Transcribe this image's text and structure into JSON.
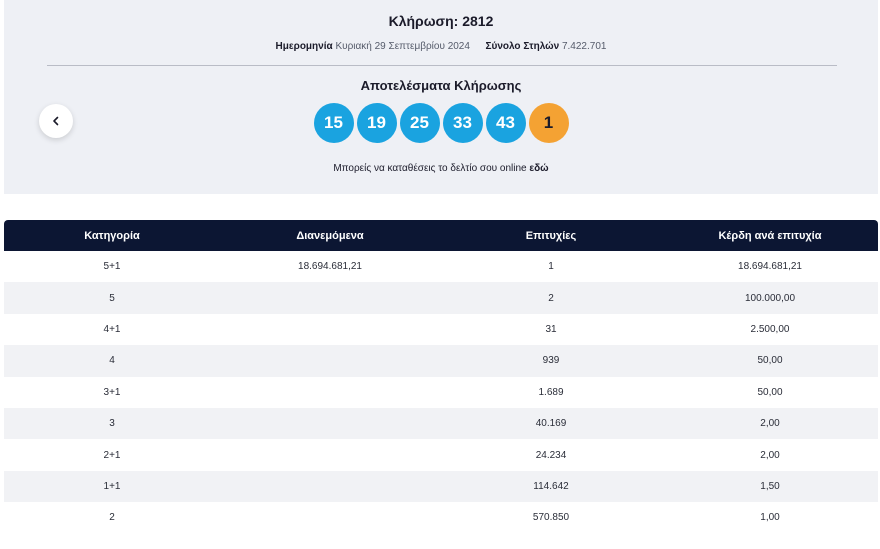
{
  "draw": {
    "title": "Κλήρωση: 2812",
    "date_label": "Ημερομηνία",
    "date_value": "Κυριακή 29 Σεπτεμβρίου 2024",
    "columns_label": "Σύνολο Στηλών",
    "columns_value": "7.422.701"
  },
  "results": {
    "title": "Αποτελέσματα Κλήρωσης",
    "numbers": [
      "15",
      "19",
      "25",
      "33",
      "43"
    ],
    "joker": "1",
    "colors": {
      "main_ball": "#1aa3e0",
      "joker_ball": "#f4a233"
    }
  },
  "online": {
    "text": "Μπορείς να καταθέσεις το δελτίο σου online",
    "link": "εδώ"
  },
  "nav": {
    "back_icon": "chevron-left-icon"
  },
  "table": {
    "headers": [
      "Κατηγορία",
      "Διανεμόμενα",
      "Επιτυχίες",
      "Κέρδη ανά επιτυχία"
    ],
    "rows": [
      [
        "5+1",
        "18.694.681,21",
        "1",
        "18.694.681,21"
      ],
      [
        "5",
        "",
        "2",
        "100.000,00"
      ],
      [
        "4+1",
        "",
        "31",
        "2.500,00"
      ],
      [
        "4",
        "",
        "939",
        "50,00"
      ],
      [
        "3+1",
        "",
        "1.689",
        "50,00"
      ],
      [
        "3",
        "",
        "40.169",
        "2,00"
      ],
      [
        "2+1",
        "",
        "24.234",
        "2,00"
      ],
      [
        "1+1",
        "",
        "114.642",
        "1,50"
      ],
      [
        "2",
        "",
        "570.850",
        "1,00"
      ]
    ]
  }
}
